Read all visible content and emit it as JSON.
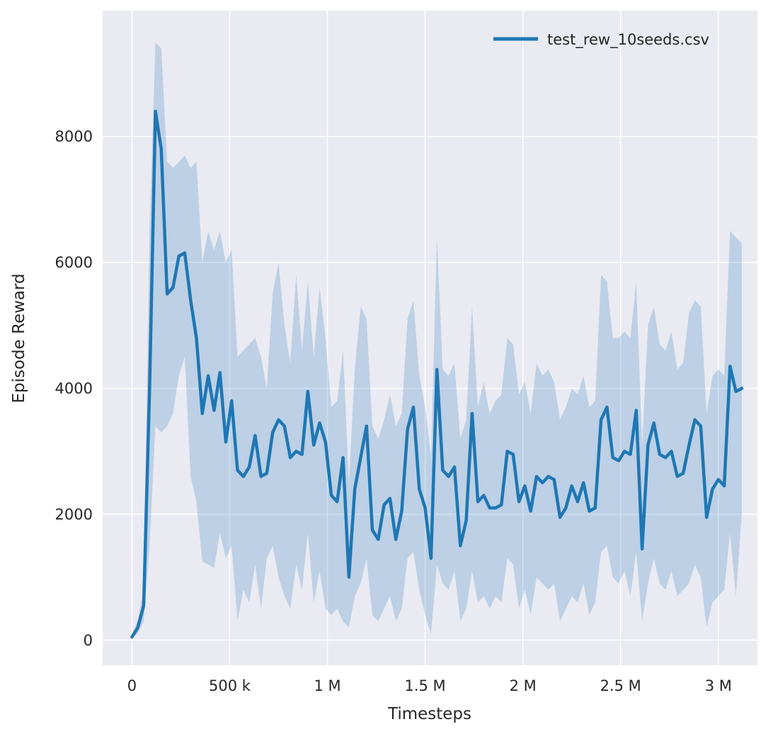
{
  "chart_data": {
    "type": "line",
    "title": "",
    "xlabel": "Timesteps",
    "ylabel": "Episode Reward",
    "legend_label": "test_rew_10seeds.csv",
    "legend_position": "top-right",
    "grid": true,
    "background_color": "#eaeaf2",
    "grid_color": "#ffffff",
    "xlim": [
      -150000,
      3200000
    ],
    "ylim": [
      -400,
      10000
    ],
    "x_ticks": [
      {
        "value": 0,
        "label": "0"
      },
      {
        "value": 500000,
        "label": "500 k"
      },
      {
        "value": 1000000,
        "label": "1 M"
      },
      {
        "value": 1500000,
        "label": "1.5 M"
      },
      {
        "value": 2000000,
        "label": "2 M"
      },
      {
        "value": 2500000,
        "label": "2.5 M"
      },
      {
        "value": 3000000,
        "label": "3 M"
      }
    ],
    "y_ticks": [
      {
        "value": 0,
        "label": "0"
      },
      {
        "value": 2000,
        "label": "2000"
      },
      {
        "value": 4000,
        "label": "4000"
      },
      {
        "value": 6000,
        "label": "6000"
      },
      {
        "value": 8000,
        "label": "8000"
      }
    ],
    "series": [
      {
        "name": "test_rew_10seeds.csv",
        "color": "#1f77b4",
        "band_color": "#1f77b4",
        "band_opacity": 0.22,
        "x": [
          0,
          30000,
          60000,
          90000,
          120000,
          150000,
          180000,
          210000,
          240000,
          270000,
          300000,
          330000,
          360000,
          390000,
          420000,
          450000,
          480000,
          510000,
          540000,
          570000,
          600000,
          630000,
          660000,
          690000,
          720000,
          750000,
          780000,
          810000,
          840000,
          870000,
          900000,
          930000,
          960000,
          990000,
          1020000,
          1050000,
          1080000,
          1110000,
          1140000,
          1170000,
          1200000,
          1230000,
          1260000,
          1290000,
          1320000,
          1350000,
          1380000,
          1410000,
          1440000,
          1470000,
          1500000,
          1530000,
          1560000,
          1590000,
          1620000,
          1650000,
          1680000,
          1710000,
          1740000,
          1770000,
          1800000,
          1830000,
          1860000,
          1890000,
          1920000,
          1950000,
          1980000,
          2010000,
          2040000,
          2070000,
          2100000,
          2130000,
          2160000,
          2190000,
          2220000,
          2250000,
          2280000,
          2310000,
          2340000,
          2370000,
          2400000,
          2430000,
          2460000,
          2490000,
          2520000,
          2550000,
          2580000,
          2610000,
          2640000,
          2670000,
          2700000,
          2730000,
          2760000,
          2790000,
          2820000,
          2850000,
          2880000,
          2910000,
          2940000,
          2970000,
          3000000,
          3030000,
          3060000,
          3090000,
          3120000
        ],
        "mean": [
          50,
          200,
          550,
          4000,
          8400,
          7800,
          5500,
          5600,
          6100,
          6150,
          5400,
          4800,
          3600,
          4200,
          3650,
          4250,
          3150,
          3800,
          2700,
          2600,
          2750,
          3250,
          2600,
          2650,
          3300,
          3500,
          3400,
          2900,
          3000,
          2950,
          3950,
          3100,
          3450,
          3150,
          2300,
          2200,
          2900,
          1000,
          2400,
          2900,
          3400,
          1750,
          1600,
          2150,
          2250,
          1600,
          2050,
          3350,
          3700,
          2400,
          2100,
          1300,
          4300,
          2700,
          2600,
          2750,
          1500,
          1900,
          3600,
          2200,
          2300,
          2100,
          2100,
          2150,
          3000,
          2950,
          2200,
          2450,
          2050,
          2600,
          2500,
          2600,
          2550,
          1950,
          2100,
          2450,
          2200,
          2500,
          2050,
          2100,
          3500,
          3700,
          2900,
          2850,
          3000,
          2950,
          3650,
          1450,
          3100,
          3450,
          2950,
          2900,
          3000,
          2600,
          2650,
          3100,
          3500,
          3400,
          1950,
          2400,
          2550,
          2450,
          4350,
          3950,
          4000
        ],
        "lower": [
          30,
          100,
          300,
          1500,
          3400,
          3300,
          3400,
          3600,
          4200,
          4500,
          2600,
          2200,
          1250,
          1200,
          1150,
          1700,
          1300,
          1500,
          300,
          800,
          600,
          1200,
          500,
          1300,
          1500,
          1000,
          700,
          500,
          1200,
          800,
          1700,
          600,
          1100,
          500,
          400,
          500,
          300,
          200,
          700,
          900,
          1300,
          400,
          300,
          500,
          700,
          300,
          500,
          1300,
          1400,
          800,
          400,
          100,
          1200,
          900,
          800,
          1100,
          300,
          500,
          1100,
          600,
          700,
          500,
          700,
          600,
          1300,
          1200,
          500,
          800,
          400,
          1000,
          900,
          800,
          900,
          300,
          500,
          700,
          600,
          900,
          400,
          600,
          1400,
          1500,
          1000,
          900,
          1100,
          700,
          1400,
          300,
          900,
          1300,
          900,
          800,
          1100,
          700,
          800,
          900,
          1200,
          1000,
          200,
          600,
          700,
          800,
          1700,
          700,
          2000
        ],
        "upper": [
          80,
          320,
          800,
          6500,
          9500,
          9400,
          7600,
          7500,
          7600,
          7700,
          7500,
          7600,
          6000,
          6500,
          6200,
          6500,
          6000,
          6200,
          4500,
          4600,
          4700,
          4800,
          4500,
          4000,
          5500,
          6000,
          5000,
          4400,
          5800,
          4600,
          5700,
          4500,
          5600,
          4800,
          3700,
          3800,
          4600,
          2500,
          4300,
          5300,
          5100,
          3400,
          3200,
          3500,
          3900,
          3400,
          3600,
          5100,
          5400,
          4200,
          3700,
          2900,
          6400,
          4300,
          4200,
          4400,
          3200,
          3500,
          5300,
          3700,
          4100,
          3600,
          3800,
          3900,
          4800,
          4700,
          3900,
          4100,
          3600,
          4400,
          4200,
          4300,
          4100,
          3500,
          3700,
          4000,
          3900,
          4200,
          3700,
          3800,
          5800,
          5700,
          4800,
          4800,
          4900,
          4800,
          5700,
          3100,
          5000,
          5300,
          4700,
          4600,
          4900,
          4300,
          4400,
          5200,
          5400,
          5300,
          3600,
          4200,
          4300,
          4200,
          6500,
          6400,
          6300
        ]
      }
    ]
  }
}
